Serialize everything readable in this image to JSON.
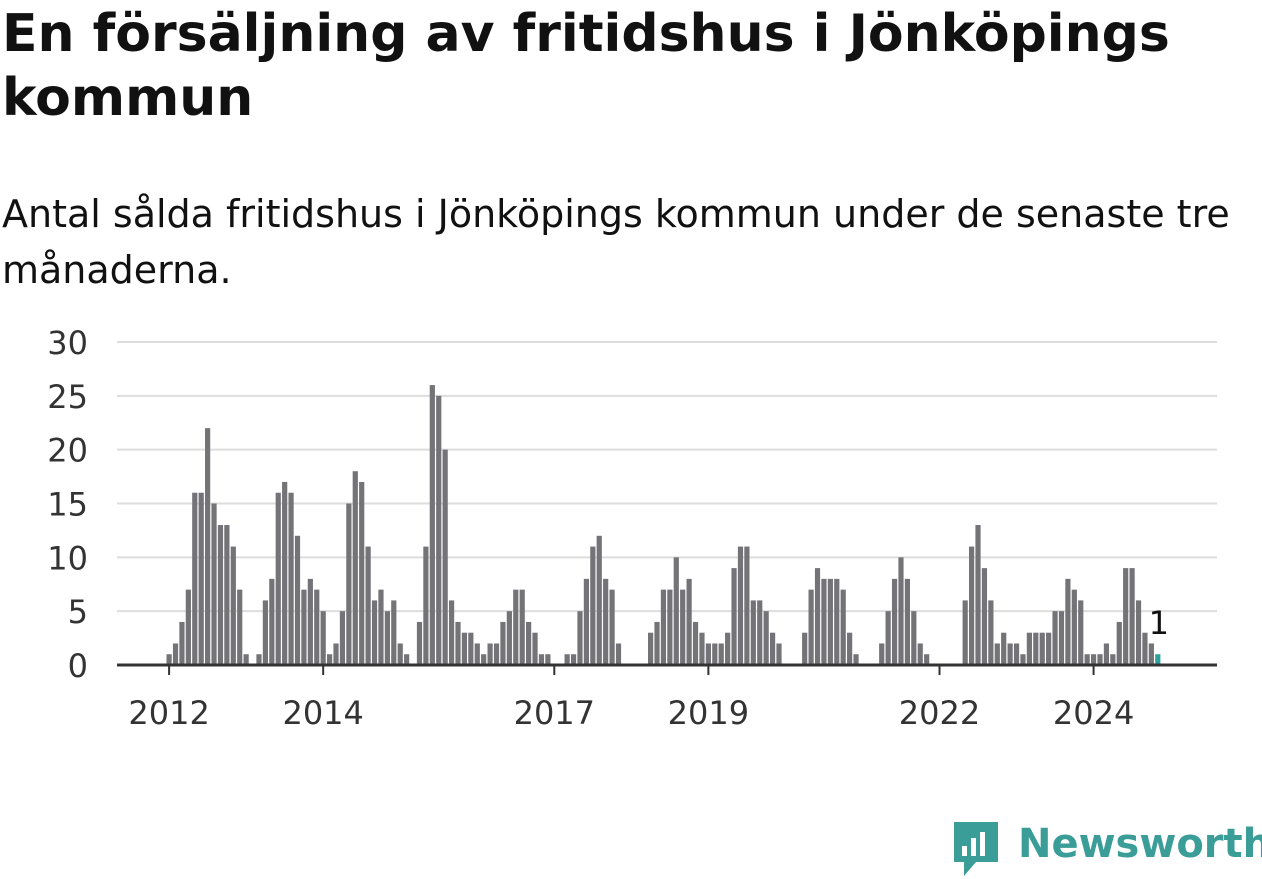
{
  "title": "En försäljning av fritidshus i Jönköpings kommun",
  "subtitle": "Antal sålda fritidshus i Jönköpings kommun under de senaste tre månaderna.",
  "brand": "Newsworthy",
  "colors": {
    "bar": "#747378",
    "highlight": "#2ba39a",
    "grid": "#dddddd",
    "axis": "#333333",
    "brand": "#3a9d97"
  },
  "chart_data": {
    "type": "bar",
    "ylim": [
      0,
      30
    ],
    "yticks": [
      0,
      5,
      10,
      15,
      20,
      25,
      30
    ],
    "x_tick_labels": [
      "2012",
      "2014",
      "2017",
      "2019",
      "2022",
      "2024"
    ],
    "grid": true,
    "values": [
      0,
      0,
      0,
      0,
      0,
      0,
      0,
      0,
      1,
      2,
      4,
      7,
      16,
      16,
      22,
      15,
      13,
      13,
      11,
      7,
      1,
      0,
      1,
      6,
      8,
      16,
      17,
      16,
      12,
      7,
      8,
      7,
      5,
      1,
      2,
      5,
      15,
      18,
      17,
      11,
      6,
      7,
      5,
      6,
      2,
      1,
      0,
      4,
      11,
      26,
      25,
      20,
      6,
      4,
      3,
      3,
      2,
      1,
      2,
      2,
      4,
      5,
      7,
      7,
      4,
      3,
      1,
      1,
      0,
      0,
      1,
      1,
      5,
      8,
      11,
      12,
      8,
      7,
      2,
      0,
      0,
      0,
      0,
      3,
      4,
      7,
      7,
      10,
      7,
      8,
      4,
      3,
      2,
      2,
      2,
      3,
      9,
      11,
      11,
      6,
      6,
      5,
      3,
      2,
      0,
      0,
      0,
      3,
      7,
      9,
      8,
      8,
      8,
      7,
      3,
      1,
      0,
      0,
      0,
      2,
      5,
      8,
      10,
      8,
      5,
      2,
      1,
      0,
      0,
      0,
      0,
      0,
      6,
      11,
      13,
      9,
      6,
      2,
      3,
      2,
      2,
      1,
      3,
      3,
      3,
      3,
      5,
      5,
      8,
      7,
      6,
      1,
      1,
      1,
      2,
      1,
      4,
      9,
      9,
      6,
      3,
      2,
      1
    ],
    "highlight_value": 1,
    "highlight_label": "1"
  }
}
